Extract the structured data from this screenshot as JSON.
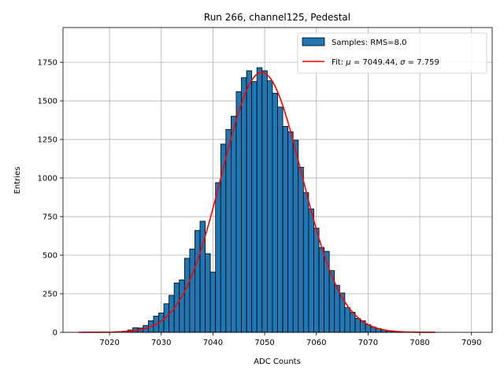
{
  "chart_data": {
    "type": "bar",
    "title": "Run 266, channel125, Pedestal",
    "xlabel": "ADC Counts",
    "ylabel": "Entries",
    "xlim": [
      7011,
      7094
    ],
    "ylim": [
      0,
      1975
    ],
    "xticks": [
      7020,
      7030,
      7040,
      7050,
      7060,
      7070,
      7080,
      7090
    ],
    "yticks": [
      0,
      250,
      500,
      750,
      1000,
      1250,
      1500,
      1750
    ],
    "grid": true,
    "legend_position": "top-right",
    "bin_width": 1,
    "bins": {
      "x": [
        7020,
        7021,
        7022,
        7023,
        7024,
        7025,
        7026,
        7027,
        7028,
        7029,
        7030,
        7031,
        7032,
        7033,
        7034,
        7035,
        7036,
        7037,
        7038,
        7039,
        7040,
        7041,
        7042,
        7043,
        7044,
        7045,
        7046,
        7047,
        7048,
        7049,
        7050,
        7051,
        7052,
        7053,
        7054,
        7055,
        7056,
        7057,
        7058,
        7059,
        7060,
        7061,
        7062,
        7063,
        7064,
        7065,
        7066,
        7067,
        7068,
        7069,
        7070,
        7071,
        7072,
        7073,
        7074,
        7075,
        7076,
        7077,
        7078
      ],
      "values": [
        2,
        3,
        5,
        8,
        15,
        30,
        28,
        45,
        75,
        105,
        125,
        185,
        240,
        320,
        340,
        480,
        540,
        660,
        720,
        510,
        390,
        970,
        1220,
        1315,
        1400,
        1560,
        1650,
        1695,
        1625,
        1715,
        1695,
        1630,
        1550,
        1460,
        1335,
        1300,
        1245,
        1070,
        905,
        800,
        675,
        550,
        525,
        400,
        305,
        255,
        160,
        130,
        90,
        75,
        50,
        35,
        25,
        15,
        10,
        6,
        4,
        2,
        1
      ],
      "color": "#1f77b4",
      "edgecolor": "#000000"
    },
    "fit": {
      "mu": 7049.44,
      "sigma": 7.759,
      "amplitude": 1685,
      "x_range": [
        7014,
        7083
      ],
      "color": "#ff0000"
    },
    "legend": [
      {
        "label": "Samples: RMS=8.0",
        "kind": "patch",
        "color": "#1f77b4"
      },
      {
        "label_prefix": "Fit: ",
        "mu_symbol": "μ",
        "mu_text": " = 7049.44, ",
        "sigma_symbol": "σ",
        "sigma_text": " = 7.759",
        "kind": "line",
        "color": "#ff0000"
      }
    ]
  }
}
